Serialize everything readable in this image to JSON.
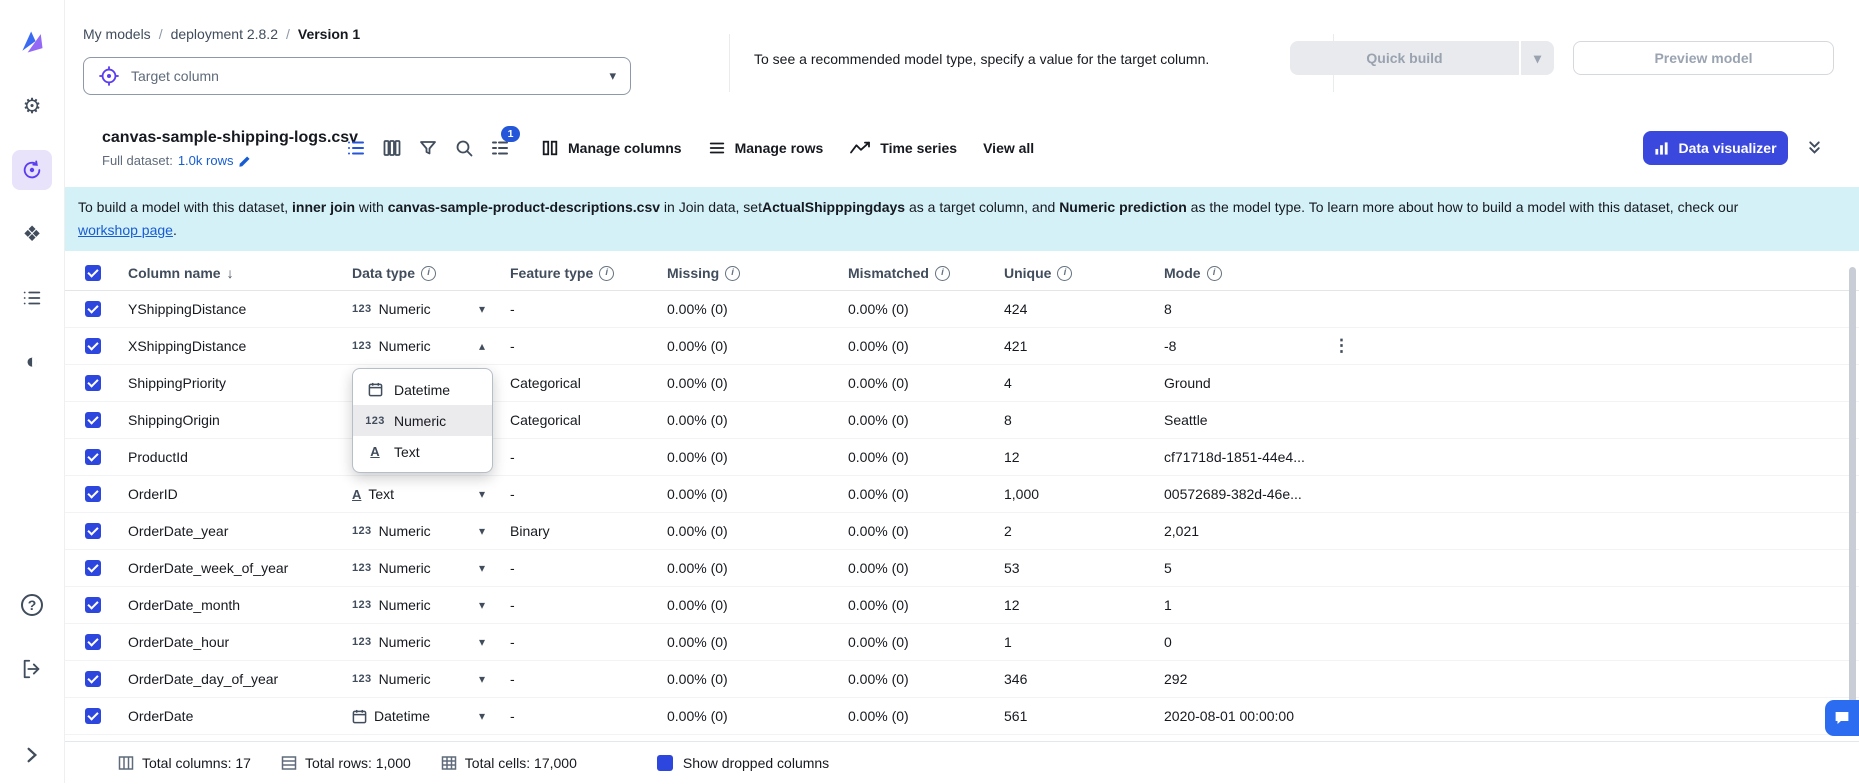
{
  "sidebar": {
    "items": [
      {
        "name": "canvas-logo"
      },
      {
        "name": "settings"
      },
      {
        "name": "my-models",
        "active": true
      },
      {
        "name": "apps"
      },
      {
        "name": "custom-list"
      },
      {
        "name": "theme-contrast"
      },
      {
        "name": "help"
      },
      {
        "name": "logout"
      },
      {
        "name": "expand-sidebar"
      }
    ]
  },
  "header": {
    "breadcrumb": [
      "My models",
      "deployment 2.8.2",
      "Version 1"
    ],
    "target_column": {
      "placeholder": "Target column"
    },
    "helper_text": "To see a recommended model type, specify a value for the target column.",
    "quick_build": "Quick build",
    "preview_model": "Preview model"
  },
  "toolbar": {
    "dataset_name": "canvas-sample-shipping-logs.csv",
    "full_dataset_label": "Full dataset:",
    "rows_link": "1.0k rows",
    "sort_badge": "1",
    "manage_columns": "Manage columns",
    "manage_rows": "Manage rows",
    "time_series": "Time series",
    "view_all": "View all",
    "data_visualizer": "Data visualizer"
  },
  "banner": {
    "segments": [
      {
        "t": "To build a model with this dataset, "
      },
      {
        "t": "inner join",
        "b": true
      },
      {
        "t": " with "
      },
      {
        "t": "canvas-sample-product-descriptions.csv",
        "b": true
      },
      {
        "t": " in Join data, set"
      },
      {
        "t": "ActualShipppingdays",
        "b": true
      },
      {
        "t": " as a target column, and "
      },
      {
        "t": "Numeric prediction",
        "b": true
      },
      {
        "t": " as the model type. To learn more about how to build a model with this dataset, check our"
      }
    ],
    "link": "workshop page",
    "link_suffix": "."
  },
  "table": {
    "headers": [
      {
        "label": "Column name",
        "sorted": "desc"
      },
      {
        "label": "Data type",
        "info": true
      },
      {
        "label": "Feature type",
        "info": true
      },
      {
        "label": "Missing",
        "info": true
      },
      {
        "label": "Mismatched",
        "info": true
      },
      {
        "label": "Unique",
        "info": true
      },
      {
        "label": "Mode",
        "info": true
      }
    ],
    "rows": [
      {
        "checked": true,
        "name": "YShippingDistance",
        "dtype": "Numeric",
        "dt": "numeric",
        "caret": "down",
        "feature": "-",
        "missing": "0.00% (0)",
        "mismatched": "0.00% (0)",
        "unique": "424",
        "mode": "8"
      },
      {
        "checked": true,
        "name": "XShippingDistance",
        "dtype": "Numeric",
        "dt": "numeric",
        "caret": "up",
        "feature": "-",
        "missing": "0.00% (0)",
        "mismatched": "0.00% (0)",
        "unique": "421",
        "mode": "-8",
        "kebab": true
      },
      {
        "checked": true,
        "name": "ShippingPriority",
        "dtype": null,
        "feature": "Categorical",
        "missing": "0.00% (0)",
        "mismatched": "0.00% (0)",
        "unique": "4",
        "mode": "Ground"
      },
      {
        "checked": true,
        "name": "ShippingOrigin",
        "dtype": null,
        "feature": "Categorical",
        "missing": "0.00% (0)",
        "mismatched": "0.00% (0)",
        "unique": "8",
        "mode": "Seattle"
      },
      {
        "checked": true,
        "name": "ProductId",
        "dtype": null,
        "feature": "-",
        "missing": "0.00% (0)",
        "mismatched": "0.00% (0)",
        "unique": "12",
        "mode": "cf71718d-1851-44e4..."
      },
      {
        "checked": true,
        "name": "OrderID",
        "dtype": "Text",
        "dt": "text",
        "caret": "down",
        "feature": "-",
        "missing": "0.00% (0)",
        "mismatched": "0.00% (0)",
        "unique": "1,000",
        "mode": "00572689-382d-46e..."
      },
      {
        "checked": true,
        "name": "OrderDate_year",
        "dtype": "Numeric",
        "dt": "numeric",
        "caret": "down",
        "feature": "Binary",
        "missing": "0.00% (0)",
        "mismatched": "0.00% (0)",
        "unique": "2",
        "mode": "2,021"
      },
      {
        "checked": true,
        "name": "OrderDate_week_of_year",
        "dtype": "Numeric",
        "dt": "numeric",
        "caret": "down",
        "feature": "-",
        "missing": "0.00% (0)",
        "mismatched": "0.00% (0)",
        "unique": "53",
        "mode": "5"
      },
      {
        "checked": true,
        "name": "OrderDate_month",
        "dtype": "Numeric",
        "dt": "numeric",
        "caret": "down",
        "feature": "-",
        "missing": "0.00% (0)",
        "mismatched": "0.00% (0)",
        "unique": "12",
        "mode": "1"
      },
      {
        "checked": true,
        "name": "OrderDate_hour",
        "dtype": "Numeric",
        "dt": "numeric",
        "caret": "down",
        "feature": "-",
        "missing": "0.00% (0)",
        "mismatched": "0.00% (0)",
        "unique": "1",
        "mode": "0"
      },
      {
        "checked": true,
        "name": "OrderDate_day_of_year",
        "dtype": "Numeric",
        "dt": "numeric",
        "caret": "down",
        "feature": "-",
        "missing": "0.00% (0)",
        "mismatched": "0.00% (0)",
        "unique": "346",
        "mode": "292"
      },
      {
        "checked": true,
        "name": "OrderDate",
        "dtype": "Datetime",
        "dt": "datetime",
        "caret": "down",
        "feature": "-",
        "missing": "0.00% (0)",
        "mismatched": "0.00% (0)",
        "unique": "561",
        "mode": "2020-08-01 00:00:00"
      }
    ]
  },
  "dropdown": {
    "items": [
      {
        "label": "Datetime",
        "type": "datetime"
      },
      {
        "label": "Numeric",
        "type": "numeric",
        "selected": true
      },
      {
        "label": "Text",
        "type": "text"
      }
    ]
  },
  "footer": {
    "stats": [
      {
        "label": "Total columns: 17"
      },
      {
        "label": "Total rows: 1,000"
      },
      {
        "label": "Total cells: 17,000"
      }
    ],
    "show_dropped": "Show dropped columns"
  },
  "colors": {
    "primary": "#3b48de",
    "checkbox": "#2d46dd",
    "link": "#175cd3",
    "banner_bg": "#d4f1f8",
    "sidebar_active": "#5b3df0"
  }
}
